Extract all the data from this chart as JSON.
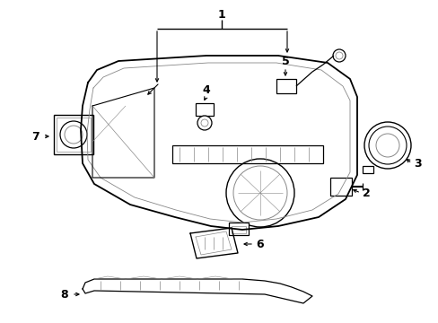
{
  "bg_color": "#ffffff",
  "line_color": "#000000",
  "gray_color": "#888888",
  "figsize": [
    4.89,
    3.6
  ],
  "dpi": 100
}
